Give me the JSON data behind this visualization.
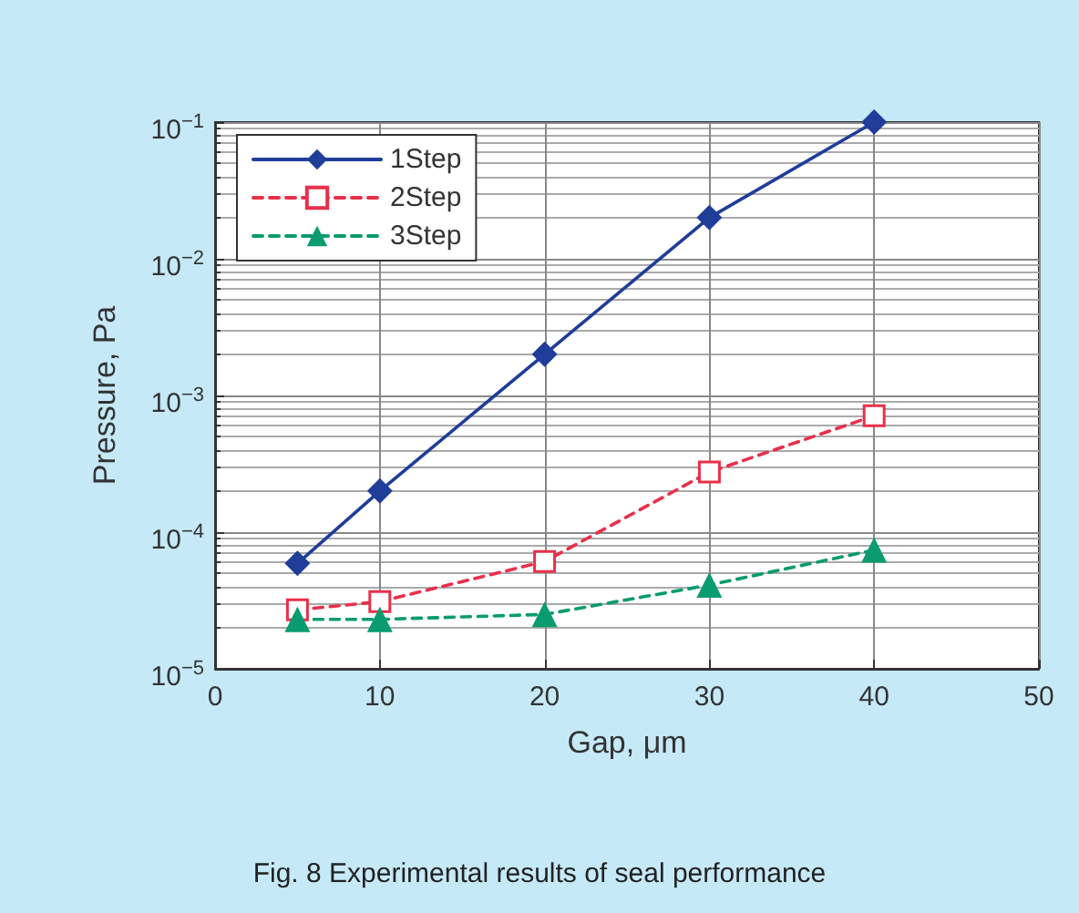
{
  "chart_data": {
    "type": "line",
    "xlabel": "Gap, μm",
    "ylabel": "Pressure, Pa",
    "x": [
      5,
      10,
      20,
      30,
      40
    ],
    "series": [
      {
        "name": "1Step",
        "color": "#1f3d99",
        "values": [
          5.9e-05,
          0.0002,
          0.002,
          0.02,
          0.1
        ],
        "marker": "diamond",
        "line_style": "solid"
      },
      {
        "name": "2Step",
        "color": "#e8304a",
        "values": [
          2.7e-05,
          3.1e-05,
          6.1e-05,
          0.000275,
          0.00071
        ],
        "marker": "square",
        "line_style": "dashed"
      },
      {
        "name": "3Step",
        "color": "#0a9b6e",
        "values": [
          2.3e-05,
          2.3e-05,
          2.5e-05,
          4.1e-05,
          7.4e-05
        ],
        "marker": "triangle",
        "line_style": "dashed"
      }
    ],
    "xlim": [
      0,
      50
    ],
    "xticks": [
      0,
      10,
      20,
      30,
      40,
      50
    ],
    "ylim": [
      1e-05,
      0.1
    ],
    "yticks": [
      {
        "value": 1e-05,
        "label": "10$^{−5}$"
      },
      {
        "value": 0.0001,
        "label": "10$^{−4}$"
      },
      {
        "value": 0.001,
        "label": "10$^{−3}$"
      },
      {
        "value": 0.01,
        "label": "10$^{−2}$"
      },
      {
        "value": 0.1,
        "label": "10$^{−1}$"
      }
    ],
    "log": "y",
    "grid": true,
    "legend": "top left",
    "annotations": [
      "Fig. 8 Experimental results of seal performance"
    ]
  }
}
